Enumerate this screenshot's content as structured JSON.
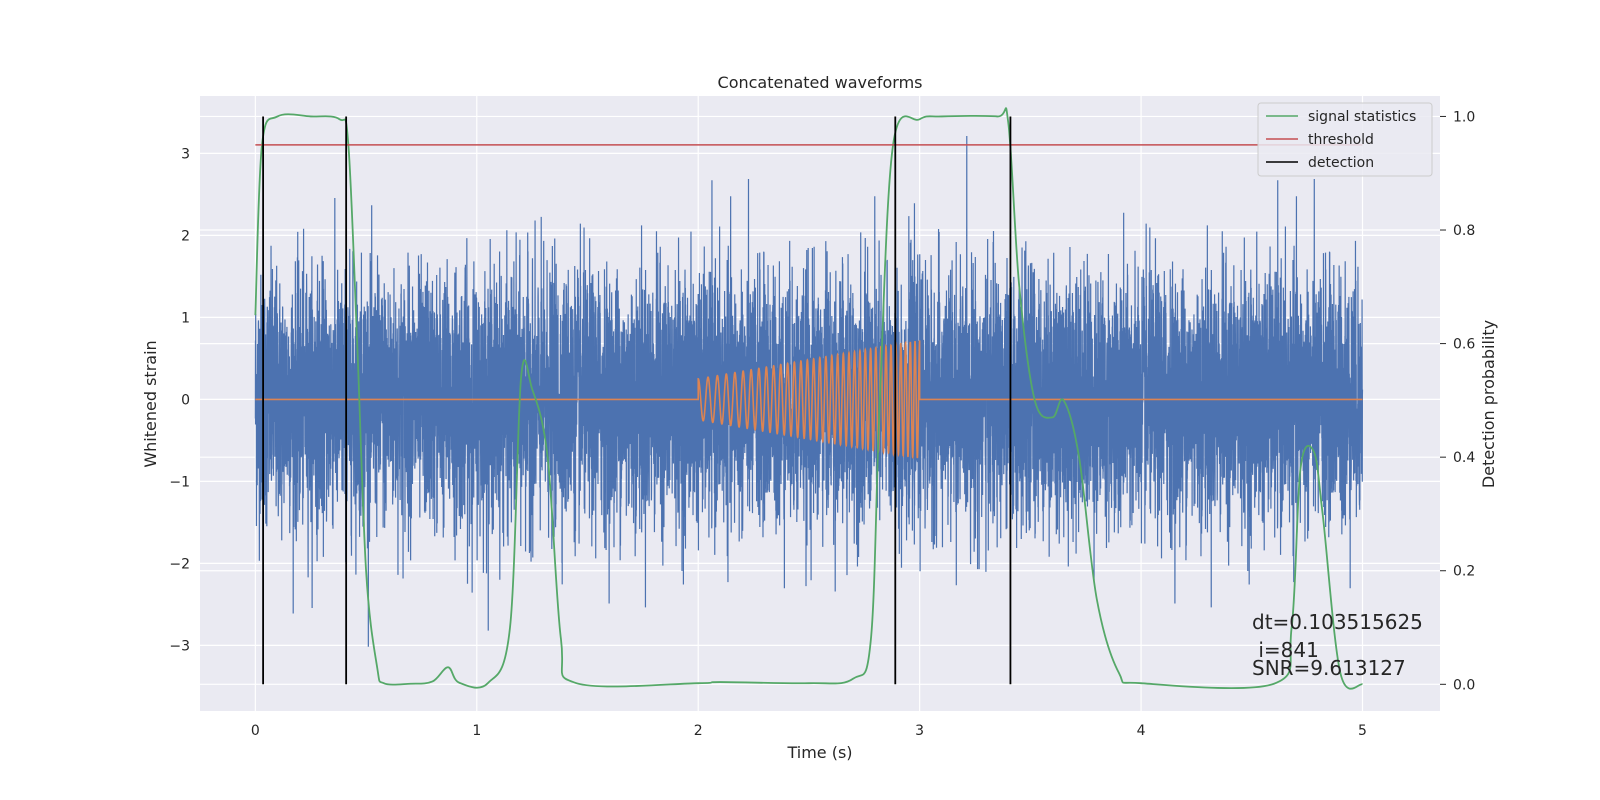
{
  "chart_data": {
    "type": "line",
    "title": "Concatenated waveforms",
    "xlabel": "Time (s)",
    "ylabel_left": "Whitened strain",
    "ylabel_right": "Detection probability",
    "xlim": [
      -0.25,
      5.35
    ],
    "ylim_left": [
      -3.8,
      3.7
    ],
    "ylim_right": [
      -0.047,
      1.036
    ],
    "x_ticks": [
      0,
      1,
      2,
      3,
      4,
      5
    ],
    "x_tick_labels": [
      "0",
      "1",
      "2",
      "3",
      "4",
      "5"
    ],
    "y_left_ticks": [
      -3,
      -2,
      -1,
      0,
      1,
      2,
      3
    ],
    "y_left_tick_labels": [
      "−3",
      "−2",
      "−1",
      "0",
      "1",
      "2",
      "3"
    ],
    "y_right_ticks": [
      0.0,
      0.2,
      0.4,
      0.6,
      0.8,
      1.0
    ],
    "y_right_tick_labels": [
      "0.0",
      "0.2",
      "0.4",
      "0.6",
      "0.8",
      "1.0"
    ],
    "grid": true,
    "legend_position": "top-right",
    "legend": [
      {
        "label": "signal statistics",
        "color": "#55a868"
      },
      {
        "label": "threshold",
        "color": "#c44e52"
      },
      {
        "label": "detection",
        "color": "#000000"
      }
    ],
    "series": [
      {
        "name": "Whitened strain (noise)",
        "axis": "left",
        "color": "#4c72b0",
        "x_range": [
          0,
          5
        ],
        "sample_rate_hz": 2048,
        "approx_std": 0.75,
        "min": -3.45,
        "max": 3.5
      },
      {
        "name": "Injected waveform",
        "axis": "left",
        "color": "#dd8452",
        "x_range": [
          0,
          5
        ],
        "chirp_start": 2.0,
        "chirp_end": 3.0,
        "start_amplitude": 0.25,
        "end_amplitude": 0.72,
        "start_freq_hz": 22,
        "end_freq_hz": 48
      },
      {
        "name": "signal statistics",
        "axis": "right",
        "color": "#55a868",
        "x": [
          0,
          0.03,
          0.1,
          0.25,
          0.38,
          0.42,
          0.46,
          0.5,
          0.55,
          0.58,
          0.7,
          0.8,
          0.87,
          0.92,
          1.05,
          1.15,
          1.2,
          1.25,
          1.32,
          1.38,
          1.45,
          2.0,
          2.1,
          2.5,
          2.7,
          2.78,
          2.82,
          2.88,
          3.0,
          3.1,
          3.35,
          3.4,
          3.45,
          3.52,
          3.6,
          3.65,
          3.72,
          3.8,
          3.9,
          4.0,
          4.6,
          4.68,
          4.72,
          4.78,
          4.82,
          4.9,
          5.0
        ],
        "y": [
          0.65,
          0.95,
          1.0,
          1.0,
          0.995,
          0.95,
          0.6,
          0.2,
          0.03,
          0.002,
          0.001,
          0.005,
          0.03,
          0.003,
          0.002,
          0.1,
          0.54,
          0.52,
          0.4,
          0.08,
          0.002,
          0.002,
          0.004,
          0.002,
          0.01,
          0.08,
          0.5,
          0.95,
          0.995,
          1.0,
          1.0,
          0.99,
          0.7,
          0.5,
          0.47,
          0.5,
          0.4,
          0.15,
          0.02,
          0.002,
          0.001,
          0.1,
          0.38,
          0.41,
          0.3,
          0.02,
          0.0
        ]
      },
      {
        "name": "threshold",
        "axis": "right",
        "color": "#c44e52",
        "x": [
          0,
          5
        ],
        "y": [
          0.95,
          0.95
        ]
      }
    ],
    "detections": [
      0.035,
      0.41,
      2.89,
      3.41
    ],
    "annotations": [
      "dt=0.103515625",
      " i=841",
      "SNR=9.613127"
    ]
  }
}
